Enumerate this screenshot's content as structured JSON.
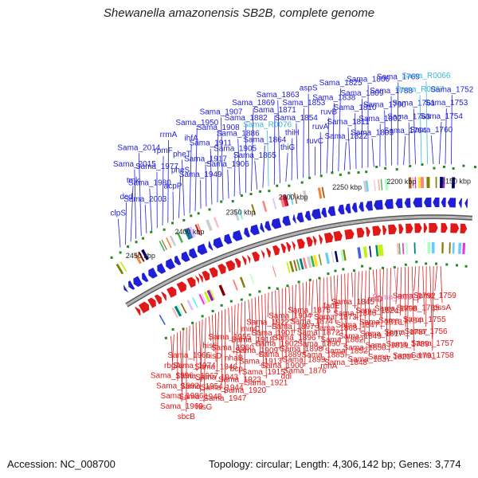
{
  "title": "Shewanella amazonensis SB2B, complete genome",
  "footer": {
    "accession": "Accession: NC_008700",
    "stats": "Topology: circular; Length: 4,306,142 bp; Genes: 3,774"
  },
  "colors": {
    "forward": "#1f1fd8",
    "reverse": "#e01818",
    "rna": "#3db8d8",
    "pseudo": "#e07ab0",
    "backbone": "#808080",
    "marker": "#1f8a1f"
  },
  "kbp_ticks": [
    "2450 kbp",
    "2400 kbp",
    "2350 kbp",
    "2300 kbp",
    "2250 kbp",
    "2200 kbp",
    "2150 kbp"
  ],
  "forward_labels": [
    "clpS",
    "dcd",
    "tmk",
    "Sama_2015",
    "Sama_2014",
    "Sama_2003",
    "Sama_1980",
    "Sama_1977",
    "rpmF",
    "rrmA",
    "acpP",
    "pheS",
    "pheT",
    "ihfA",
    "Sama_1950",
    "Sama_1949",
    "Sama_1917",
    "Sama_1911",
    "Sama_1908",
    "Sama_1907",
    "Sama_1906",
    "Sama_1905",
    "Sama_1886",
    "Sama_1882",
    "Sama_1869",
    "Sama_1865",
    "Sama_1864",
    "Sama_R0076",
    "Sama_1871",
    "Sama_1863",
    "thiG",
    "thiH",
    "Sama_1854",
    "Sama_1853",
    "aspS",
    "ruvC",
    "ruvA",
    "ruvB",
    "Sama_1838",
    "Sama_1825",
    "Sama_1822",
    "Sama_1811",
    "Sama_1810",
    "Sama_1809",
    "Sama_1806",
    "Sama_1803",
    "Sama_1802",
    "Sama_1790",
    "Sama_1788",
    "Sama_1769",
    "Sama_1764",
    "Sama_1763",
    "Sama_1761",
    "Sama_R0067",
    "Sama_R0066",
    "Sama_1760",
    "Sama_1754",
    "Sama_1753",
    "Sama_1752"
  ],
  "reverse_labels": [
    "rbgA",
    "Sama_1996",
    "Sama_1992",
    "Sama_1986",
    "Sama_1969",
    "sbcB",
    "Sama_1966",
    "Sama_1974",
    "Sama_1967",
    "Sama_1954",
    "Sama_1948",
    "hisG",
    "hisH",
    "hisD",
    "Sama_1946",
    "Sama_1943",
    "Sama_1944",
    "Sama_1947",
    "Sama_1955",
    "Sama_1960",
    "nhaB",
    "bcp",
    "Sama_1923",
    "Sama_1920",
    "minC",
    "Sama_1918",
    "Sama_1909",
    "Sama_1913",
    "Sama_1915",
    "Sama_1921",
    "Sama_1922",
    "Sama_1901",
    "Sama_1902",
    "Sama_1889",
    "Sama_1900",
    "ddl",
    "Sama_1904",
    "Sama_1897",
    "Sama_1896",
    "Sama_1898",
    "Sama_1899",
    "Sama_1876",
    "Sama_1875",
    "Sama_1874",
    "Sama_1872",
    "Sama_1890",
    "Sama_1885",
    "rnhA",
    "fadE",
    "Sama_1873",
    "Sama_1868",
    "Sama_1862",
    "Sama_1852",
    "Sama_1848",
    "Sama_1845",
    "Sama_1846",
    "Sama_1847",
    "Sama_1849",
    "Sama_1850",
    "Sama_1837",
    "rnfD",
    "Sama_1824",
    "Sama_1813",
    "Sama_1817",
    "Sama_1819",
    "Sama_1820",
    "Sama_R0070",
    "Sama_1798",
    "Sama_1784",
    "Sama_1787",
    "Sama_1789",
    "Sama_1791",
    "Sama_1792",
    "Sama_1765",
    "Sama_1755",
    "Sama_1756",
    "Sama_1757",
    "Sama_1758",
    "Sama_1759",
    "pssA"
  ]
}
